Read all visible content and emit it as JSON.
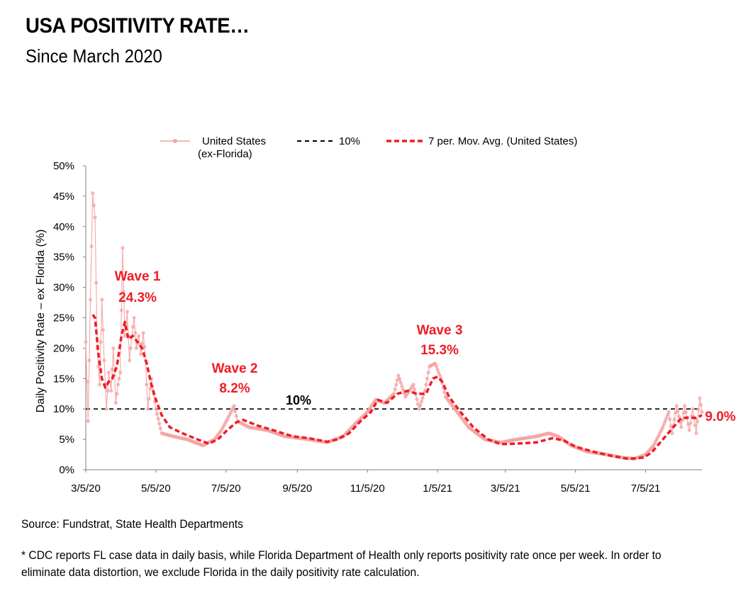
{
  "header": {
    "title": "USA POSITIVITY RATE…",
    "subtitle": "Since March 2020"
  },
  "footer": {
    "source": "Source: Fundstrat, State Health Departments",
    "note": "* CDC reports FL case data in daily basis,  while Florida Department of Health only reports positivity rate once per week. In order to eliminate data distortion, we exclude Florida in the daily positivity rate calculation."
  },
  "colors": {
    "daily": "#f4a3a3",
    "moving_avg": "#ee1c25",
    "threshold": "#000000",
    "axis": "#808080",
    "annotation": "#ee1c25"
  },
  "chart_data": {
    "type": "line",
    "ylabel": "Daily Positivity Rate – ex Florida (%)",
    "xlabel": "",
    "ylim": [
      0,
      50
    ],
    "y_ticks": [
      "0%",
      "5%",
      "10%",
      "15%",
      "20%",
      "25%",
      "30%",
      "35%",
      "40%",
      "45%",
      "50%"
    ],
    "y_tick_values": [
      0,
      5,
      10,
      15,
      20,
      25,
      30,
      35,
      40,
      45,
      50
    ],
    "x_ticks": [
      "3/5/20",
      "5/5/20",
      "7/5/20",
      "9/5/20",
      "11/5/20",
      "1/5/21",
      "3/5/21",
      "5/5/21",
      "7/5/21"
    ],
    "x_tick_dates": [
      "2020-03-05",
      "2020-05-05",
      "2020-07-05",
      "2020-09-05",
      "2020-11-05",
      "2021-01-05",
      "2021-03-05",
      "2021-05-05",
      "2021-07-05"
    ],
    "x_range": [
      "2020-03-05",
      "2021-08-23"
    ],
    "legend": {
      "position": "top",
      "entries": [
        "United States\n(ex-Florida)",
        "10%",
        "7 per. Mov. Avg. (United States)"
      ]
    },
    "threshold": {
      "value": 10,
      "label": "10%"
    },
    "series": [
      {
        "name": "United States (ex-Florida)",
        "style": "daily-markers",
        "keypoints": [
          [
            "2020-03-05",
            21
          ],
          [
            "2020-03-07",
            8
          ],
          [
            "2020-03-09",
            28
          ],
          [
            "2020-03-11",
            45.5
          ],
          [
            "2020-03-13",
            41.5
          ],
          [
            "2020-03-15",
            20
          ],
          [
            "2020-03-17",
            14
          ],
          [
            "2020-03-19",
            28
          ],
          [
            "2020-03-21",
            18
          ],
          [
            "2020-03-23",
            10
          ],
          [
            "2020-03-25",
            16
          ],
          [
            "2020-03-27",
            13
          ],
          [
            "2020-03-29",
            20
          ],
          [
            "2020-03-31",
            11
          ],
          [
            "2020-04-02",
            14
          ],
          [
            "2020-04-04",
            16
          ],
          [
            "2020-04-06",
            36.5
          ],
          [
            "2020-04-08",
            22
          ],
          [
            "2020-04-10",
            26
          ],
          [
            "2020-04-12",
            18
          ],
          [
            "2020-04-14",
            22
          ],
          [
            "2020-04-16",
            25
          ],
          [
            "2020-04-18",
            20
          ],
          [
            "2020-04-20",
            22
          ],
          [
            "2020-04-22",
            19
          ],
          [
            "2020-04-24",
            22.5
          ],
          [
            "2020-04-26",
            18
          ],
          [
            "2020-04-28",
            10
          ],
          [
            "2020-05-01",
            15
          ],
          [
            "2020-05-05",
            10
          ],
          [
            "2020-05-10",
            6
          ],
          [
            "2020-05-20",
            5.5
          ],
          [
            "2020-06-01",
            5
          ],
          [
            "2020-06-15",
            4
          ],
          [
            "2020-06-25",
            5
          ],
          [
            "2020-07-01",
            6.5
          ],
          [
            "2020-07-08",
            9
          ],
          [
            "2020-07-12",
            10.5
          ],
          [
            "2020-07-15",
            8
          ],
          [
            "2020-07-25",
            7
          ],
          [
            "2020-08-10",
            6.5
          ],
          [
            "2020-08-25",
            5.5
          ],
          [
            "2020-09-15",
            5
          ],
          [
            "2020-10-01",
            4.5
          ],
          [
            "2020-10-15",
            5.5
          ],
          [
            "2020-10-25",
            7.5
          ],
          [
            "2020-11-05",
            9.5
          ],
          [
            "2020-11-12",
            11.5
          ],
          [
            "2020-11-20",
            11
          ],
          [
            "2020-11-28",
            12.5
          ],
          [
            "2020-12-02",
            15.5
          ],
          [
            "2020-12-08",
            12
          ],
          [
            "2020-12-15",
            14
          ],
          [
            "2020-12-20",
            10
          ],
          [
            "2020-12-25",
            13
          ],
          [
            "2020-12-29",
            17
          ],
          [
            "2021-01-03",
            17.5
          ],
          [
            "2021-01-08",
            15
          ],
          [
            "2021-01-12",
            12
          ],
          [
            "2021-01-20",
            10
          ],
          [
            "2021-02-01",
            7
          ],
          [
            "2021-02-15",
            5
          ],
          [
            "2021-03-01",
            4.5
          ],
          [
            "2021-03-15",
            5
          ],
          [
            "2021-04-01",
            5.5
          ],
          [
            "2021-04-12",
            6
          ],
          [
            "2021-04-20",
            5.5
          ],
          [
            "2021-05-01",
            4
          ],
          [
            "2021-05-15",
            3
          ],
          [
            "2021-06-01",
            2.5
          ],
          [
            "2021-06-15",
            2
          ],
          [
            "2021-06-25",
            1.8
          ],
          [
            "2021-07-05",
            2.5
          ],
          [
            "2021-07-12",
            4
          ],
          [
            "2021-07-20",
            7
          ],
          [
            "2021-07-25",
            9.5
          ],
          [
            "2021-07-28",
            6
          ],
          [
            "2021-08-01",
            10.5
          ],
          [
            "2021-08-05",
            7
          ],
          [
            "2021-08-08",
            10.5
          ],
          [
            "2021-08-12",
            6.5
          ],
          [
            "2021-08-15",
            10
          ],
          [
            "2021-08-18",
            6
          ],
          [
            "2021-08-21",
            11.8
          ],
          [
            "2021-08-23",
            9.5
          ]
        ]
      },
      {
        "name": "7 per. Mov. Avg. (United States)",
        "style": "dashed",
        "keypoints": [
          [
            "2020-03-11",
            25.5
          ],
          [
            "2020-03-13",
            25
          ],
          [
            "2020-03-16",
            19
          ],
          [
            "2020-03-19",
            15
          ],
          [
            "2020-03-22",
            13.5
          ],
          [
            "2020-03-25",
            14.5
          ],
          [
            "2020-03-28",
            15
          ],
          [
            "2020-04-01",
            17
          ],
          [
            "2020-04-05",
            22
          ],
          [
            "2020-04-08",
            24.3
          ],
          [
            "2020-04-11",
            21.5
          ],
          [
            "2020-04-15",
            22
          ],
          [
            "2020-04-19",
            21
          ],
          [
            "2020-04-23",
            20
          ],
          [
            "2020-04-27",
            17.5
          ],
          [
            "2020-05-01",
            14
          ],
          [
            "2020-05-05",
            11.5
          ],
          [
            "2020-05-10",
            9
          ],
          [
            "2020-05-17",
            7
          ],
          [
            "2020-05-28",
            6
          ],
          [
            "2020-06-10",
            5
          ],
          [
            "2020-06-20",
            4.3
          ],
          [
            "2020-06-28",
            5
          ],
          [
            "2020-07-06",
            6.5
          ],
          [
            "2020-07-14",
            7.8
          ],
          [
            "2020-07-20",
            8.2
          ],
          [
            "2020-08-01",
            7.3
          ],
          [
            "2020-08-15",
            6.5
          ],
          [
            "2020-09-01",
            5.5
          ],
          [
            "2020-09-15",
            5.2
          ],
          [
            "2020-10-01",
            4.6
          ],
          [
            "2020-10-10",
            5
          ],
          [
            "2020-10-20",
            6
          ],
          [
            "2020-10-30",
            8
          ],
          [
            "2020-11-08",
            9.5
          ],
          [
            "2020-11-14",
            11.5
          ],
          [
            "2020-11-22",
            11
          ],
          [
            "2020-12-01",
            12.5
          ],
          [
            "2020-12-10",
            13
          ],
          [
            "2020-12-18",
            12.5
          ],
          [
            "2020-12-26",
            12.5
          ],
          [
            "2021-01-01",
            15
          ],
          [
            "2021-01-05",
            15.3
          ],
          [
            "2021-01-09",
            14.5
          ],
          [
            "2021-01-15",
            12
          ],
          [
            "2021-01-25",
            9.5
          ],
          [
            "2021-02-05",
            7
          ],
          [
            "2021-02-18",
            5
          ],
          [
            "2021-03-01",
            4.2
          ],
          [
            "2021-03-15",
            4.3
          ],
          [
            "2021-04-01",
            4.5
          ],
          [
            "2021-04-15",
            5.2
          ],
          [
            "2021-04-25",
            4.8
          ],
          [
            "2021-05-05",
            3.8
          ],
          [
            "2021-05-20",
            3
          ],
          [
            "2021-06-05",
            2.3
          ],
          [
            "2021-06-20",
            1.8
          ],
          [
            "2021-07-03",
            2
          ],
          [
            "2021-07-10",
            2.8
          ],
          [
            "2021-07-20",
            5
          ],
          [
            "2021-07-30",
            7.2
          ],
          [
            "2021-08-05",
            8.5
          ],
          [
            "2021-08-12",
            8.6
          ],
          [
            "2021-08-18",
            8.5
          ],
          [
            "2021-08-23",
            9
          ]
        ]
      }
    ],
    "annotations": [
      {
        "text": "Wave 1",
        "value_text": "24.3%",
        "date": "2020-04-08",
        "value": 24.3
      },
      {
        "text": "Wave 2",
        "value_text": "8.2%",
        "date": "2020-07-20",
        "value": 8.2
      },
      {
        "text": "Wave 3",
        "value_text": "15.3%",
        "date": "2021-01-05",
        "value": 15.3
      },
      {
        "text": "",
        "value_text": "9.0%",
        "date": "2021-08-23",
        "value": 9.0
      }
    ]
  }
}
